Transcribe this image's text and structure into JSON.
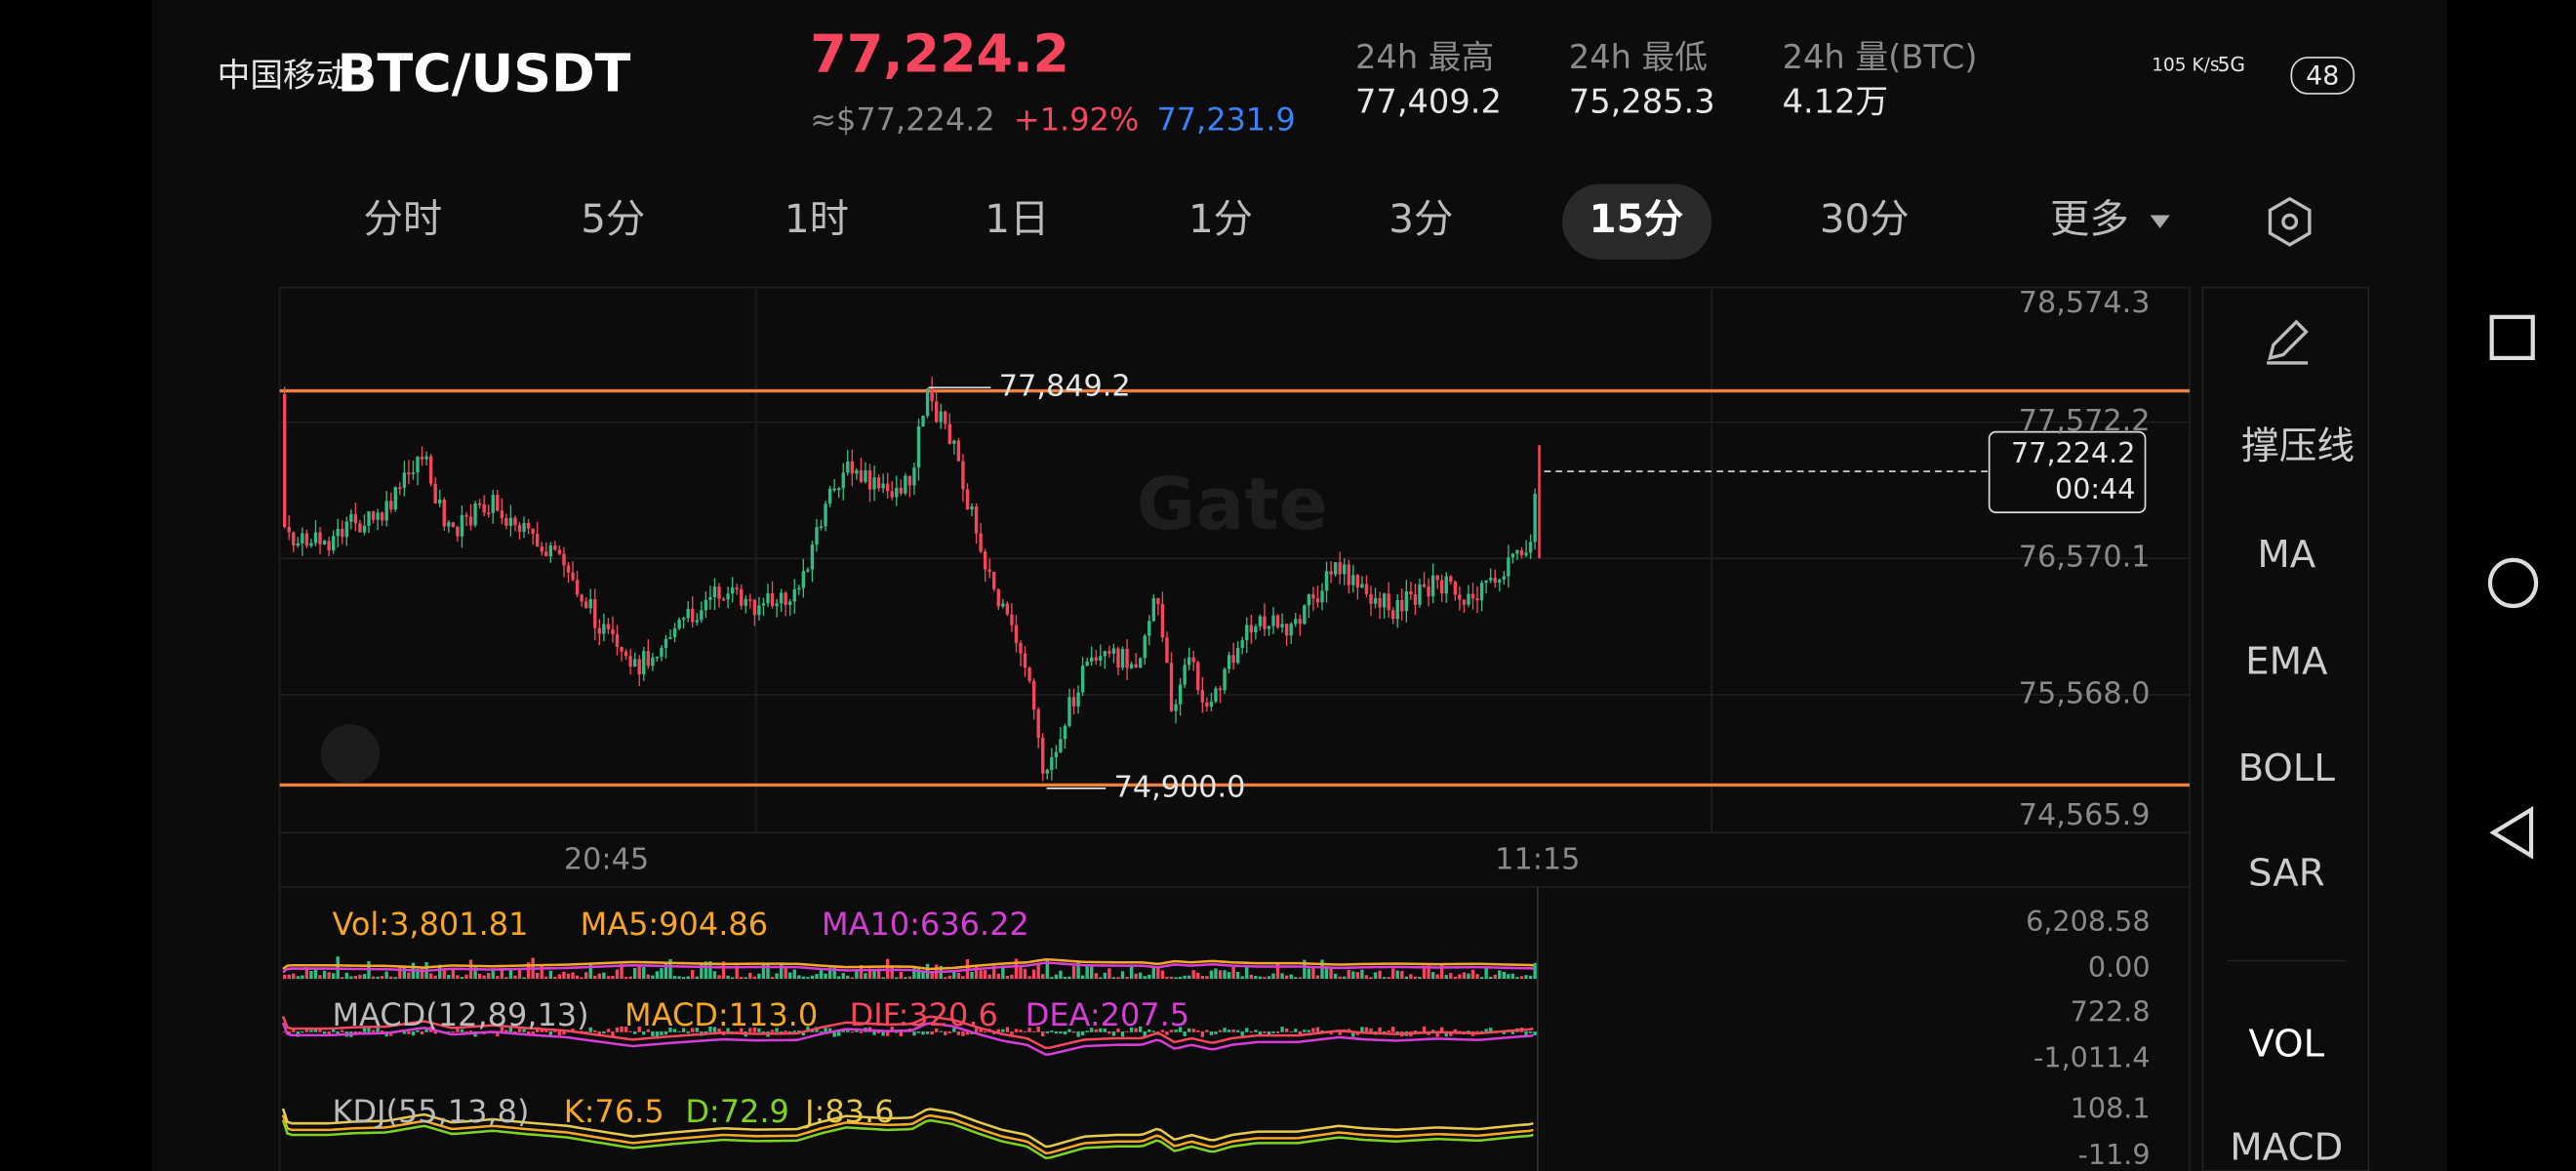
{
  "status_bar": {
    "carrier": "中国移动",
    "speed": "105 K/s",
    "network": "5G",
    "battery": "48"
  },
  "header": {
    "symbol": "BTC/USDT",
    "price": "77,224.2",
    "fiat_price": "≈$77,224.2",
    "change": "+1.92%",
    "mark_price": "77,231.9",
    "stats": [
      {
        "label": "24h 最高",
        "value": "77,409.2"
      },
      {
        "label": "24h 最低",
        "value": "75,285.3"
      },
      {
        "label": "24h 量(BTC)",
        "value": "4.12万"
      }
    ]
  },
  "tabs": [
    "分时",
    "5分",
    "1时",
    "1日",
    "1分",
    "3分",
    "15分",
    "30分",
    "更多"
  ],
  "chart": {
    "watermark": "Gate",
    "price_axis": [
      "78,574.3",
      "77,572.2",
      "76,570.1",
      "75,568.0",
      "74,565.9"
    ],
    "high_label": "77,849.2",
    "low_label": "74,900.0",
    "current_price": "77,224.2",
    "countdown": "00:44",
    "time_axis": [
      "20:45",
      "11:15"
    ]
  },
  "volume": {
    "labels": [
      "Vol:3,801.81",
      "MA5:904.86",
      "MA10:636.22"
    ],
    "axis": [
      "6,208.58",
      "0.00"
    ]
  },
  "macd": {
    "labels": [
      "MACD(12,89,13)",
      "MACD:113.0",
      "DIF:320.6",
      "DEA:207.5"
    ],
    "axis": [
      "722.8",
      "-1,011.4"
    ]
  },
  "kdj": {
    "labels": [
      "KDJ(55,13,8)",
      "K:76.5",
      "D:72.9",
      "J:83.6"
    ],
    "axis": [
      "108.1",
      "-11.9"
    ]
  },
  "side_menu": [
    "撑压线",
    "MA",
    "EMA",
    "BOLL",
    "SAR",
    "VOL",
    "MACD"
  ]
}
